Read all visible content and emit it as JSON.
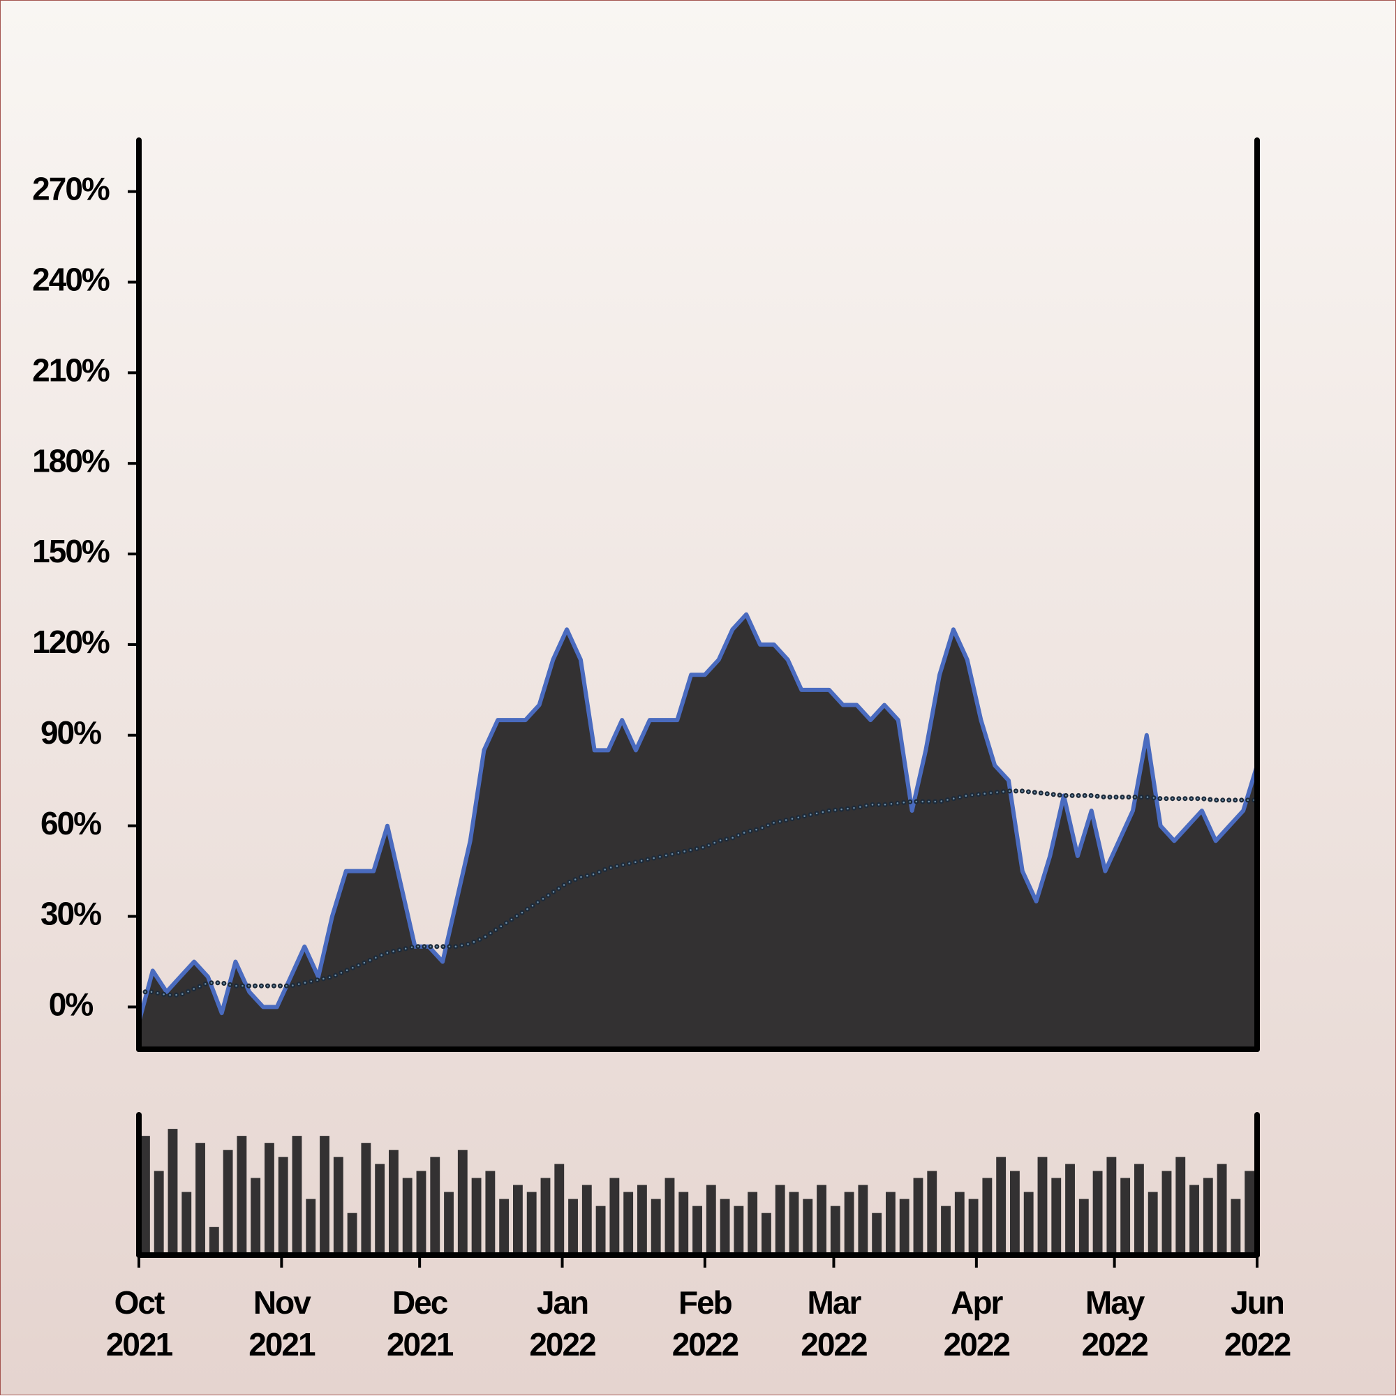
{
  "chart_data": [
    {
      "type": "area",
      "x": [
        0,
        3,
        6,
        9,
        12,
        15,
        18,
        21,
        24,
        27,
        30,
        33,
        36,
        39,
        42,
        45,
        48,
        51,
        54,
        57,
        60,
        63,
        66,
        69,
        72,
        75,
        78,
        81,
        84,
        87,
        90,
        93,
        96,
        99,
        102,
        105,
        108,
        111,
        114,
        117,
        120,
        123,
        126,
        129,
        132,
        135,
        138,
        141,
        144,
        147,
        150,
        153,
        156,
        159,
        162,
        165,
        168,
        171,
        174,
        177,
        180,
        183,
        186,
        189,
        192,
        195,
        198,
        201,
        204,
        207,
        210,
        213,
        216,
        219,
        222,
        225,
        228,
        231,
        234,
        237,
        240,
        243
      ],
      "xlim": [
        0,
        243
      ],
      "xticks": [
        {
          "value": 0,
          "label": "Oct 2021"
        },
        {
          "value": 31,
          "label": "Nov 2021"
        },
        {
          "value": 61,
          "label": "Dec 2021"
        },
        {
          "value": 92,
          "label": "Jan 2022"
        },
        {
          "value": 123,
          "label": "Feb 2022"
        },
        {
          "value": 151,
          "label": "Mar 2022"
        },
        {
          "value": 182,
          "label": "Apr 2022"
        },
        {
          "value": 212,
          "label": "May 2022"
        },
        {
          "value": 243,
          "label": "Jun 2022"
        }
      ],
      "ylim": [
        -14,
        287
      ],
      "yticks": [
        {
          "value": 0,
          "label": "0%"
        },
        {
          "value": 30,
          "label": "30%"
        },
        {
          "value": 60,
          "label": "60%"
        },
        {
          "value": 90,
          "label": "90%"
        },
        {
          "value": 120,
          "label": "120%"
        },
        {
          "value": 150,
          "label": "150%"
        },
        {
          "value": 180,
          "label": "180%"
        },
        {
          "value": 210,
          "label": "210%"
        },
        {
          "value": 240,
          "label": "240%"
        },
        {
          "value": 270,
          "label": "270%"
        }
      ],
      "series": [
        {
          "color": "#4a6bbf",
          "fill": "#333132",
          "values": [
            -5,
            12,
            5,
            10,
            15,
            10,
            -2,
            15,
            5,
            0,
            0,
            10,
            20,
            10,
            30,
            45,
            45,
            45,
            60,
            40,
            20,
            20,
            15,
            35,
            55,
            85,
            95,
            95,
            95,
            100,
            115,
            125,
            115,
            85,
            85,
            95,
            85,
            95,
            95,
            95,
            110,
            110,
            115,
            125,
            130,
            120,
            120,
            115,
            105,
            105,
            105,
            100,
            100,
            95,
            100,
            95,
            65,
            85,
            110,
            125,
            115,
            95,
            80,
            75,
            45,
            35,
            50,
            70,
            50,
            65,
            45,
            55,
            65,
            90,
            60,
            55,
            60,
            65,
            55,
            60,
            65,
            80
          ]
        },
        {
          "color": "#1c2a3a",
          "line_style": "dotted",
          "values": [
            5,
            5,
            4,
            4,
            6,
            8,
            8,
            7,
            7,
            7,
            7,
            7,
            8,
            9,
            10,
            12,
            14,
            16,
            18,
            19,
            20,
            20,
            20,
            20,
            21,
            23,
            26,
            29,
            32,
            35,
            38,
            41,
            43,
            44,
            46,
            47,
            48,
            49,
            50,
            51,
            52,
            53,
            55,
            56,
            58,
            59,
            61,
            62,
            63,
            64,
            65,
            65.5,
            66,
            67,
            67,
            67.5,
            68,
            68,
            68,
            69,
            70,
            70.5,
            71,
            71.5,
            71.5,
            71,
            70.5,
            70,
            70,
            70,
            69.5,
            69.5,
            69.5,
            69.5,
            69,
            69,
            69,
            69,
            68.5,
            68.5,
            68.5,
            68.5
          ]
        }
      ]
    },
    {
      "type": "bar",
      "color": "#333132",
      "ylim": [
        0,
        100
      ],
      "values": [
        85,
        60,
        90,
        45,
        80,
        20,
        75,
        85,
        55,
        80,
        70,
        85,
        40,
        85,
        70,
        30,
        80,
        65,
        75,
        55,
        60,
        70,
        45,
        75,
        55,
        60,
        40,
        50,
        45,
        55,
        65,
        40,
        50,
        35,
        55,
        45,
        50,
        40,
        55,
        45,
        35,
        50,
        40,
        35,
        45,
        30,
        50,
        45,
        40,
        50,
        35,
        45,
        50,
        30,
        45,
        40,
        55,
        60,
        35,
        45,
        40,
        55,
        70,
        60,
        45,
        70,
        55,
        65,
        40,
        60,
        70,
        55,
        65,
        45,
        60,
        70,
        50,
        55,
        65,
        40,
        60,
        45
      ]
    }
  ]
}
